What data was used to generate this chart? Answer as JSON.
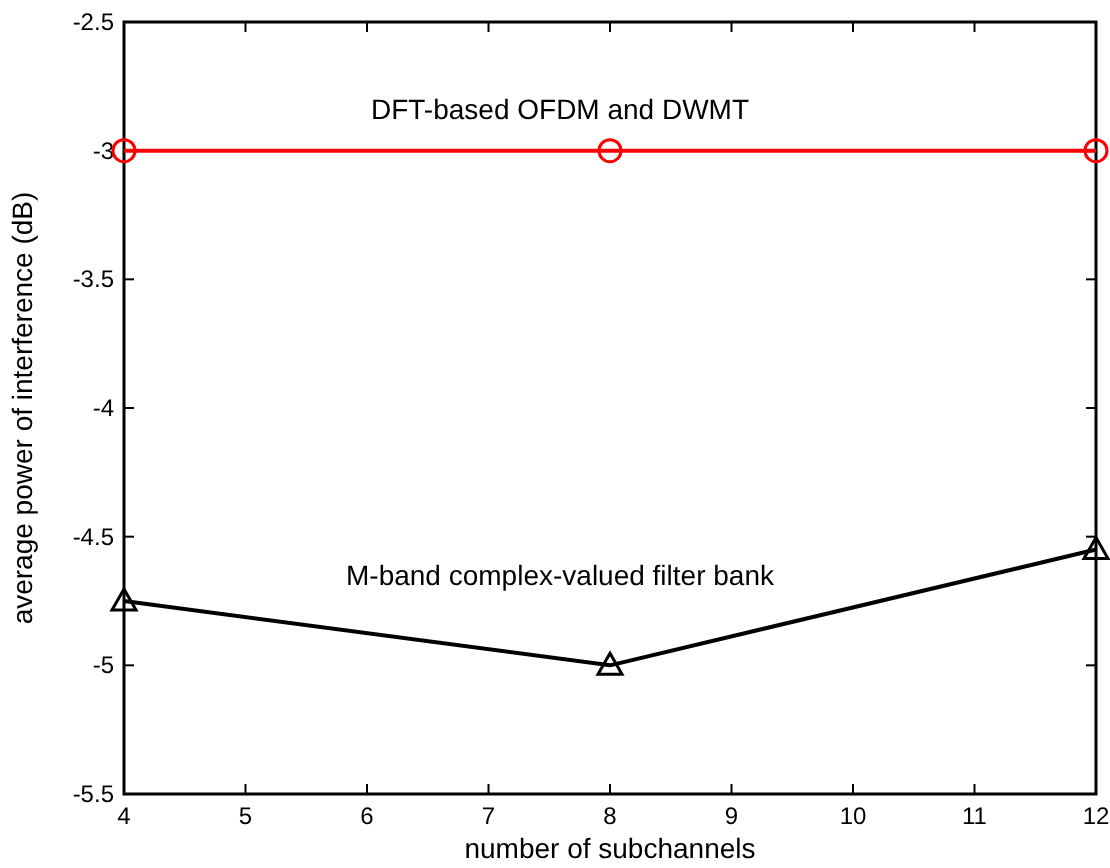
{
  "chart_data": {
    "type": "line",
    "xlabel": "number of subchannels",
    "ylabel": "average power of interference (dB)",
    "x": [
      4,
      8,
      12
    ],
    "xlim": [
      4,
      12
    ],
    "xticks": [
      4,
      5,
      6,
      7,
      8,
      9,
      10,
      11,
      12
    ],
    "ylim": [
      -5.5,
      -2.5
    ],
    "yticks": [
      -5.5,
      -5,
      -4.5,
      -4,
      -3.5,
      -3,
      -2.5
    ],
    "grid": false,
    "legend": false,
    "series": [
      {
        "name": "DFT-based OFDM and DWMT",
        "color": "#ff0000",
        "values": [
          -3,
          -3,
          -3
        ],
        "marker": "circle"
      },
      {
        "name": "M-band complex-valued filter bank",
        "color": "#000000",
        "values": [
          -4.75,
          -5,
          -4.55
        ],
        "marker": "triangle"
      }
    ]
  }
}
